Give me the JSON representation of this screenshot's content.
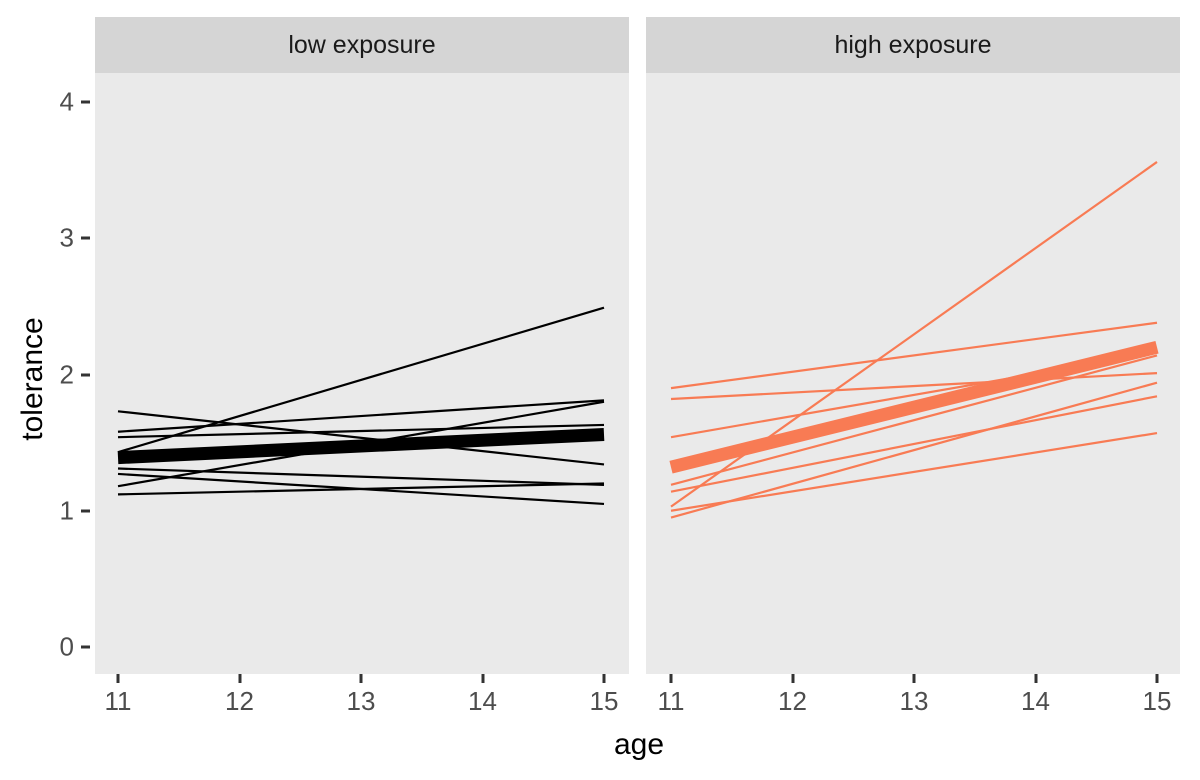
{
  "chart_data": {
    "type": "line",
    "title": "",
    "xlabel": "age",
    "ylabel": "tolerance",
    "x_endpoints": [
      11,
      15
    ],
    "x_ticks": [
      "11",
      "12",
      "13",
      "14",
      "15"
    ],
    "y_ticks": [
      "0",
      "1",
      "2",
      "3",
      "4"
    ],
    "xlim": [
      10.8,
      15.2
    ],
    "ylim": [
      -0.2,
      4.2
    ],
    "grid": false,
    "legend": "none",
    "description": "Individual fitted tolerance trajectories (thin lines) and group-average trajectory (thick line), faceted by exposure group; values are tolerance at age 11 and age 15.",
    "facets": [
      {
        "label": "low exposure",
        "line_color": "#000000",
        "individual_lines": [
          [
            1.54,
            1.63
          ],
          [
            1.31,
            1.19
          ],
          [
            1.58,
            1.81
          ],
          [
            1.43,
            2.49
          ],
          [
            1.12,
            1.2
          ],
          [
            1.27,
            1.05
          ],
          [
            1.73,
            1.34
          ],
          [
            1.18,
            1.8
          ]
        ],
        "mean_line": [
          1.39,
          1.56
        ]
      },
      {
        "label": "high exposure",
        "line_color": "#f87b54",
        "individual_lines": [
          [
            1.9,
            2.38
          ],
          [
            1.14,
            1.84
          ],
          [
            1.82,
            2.01
          ],
          [
            1.0,
            1.57
          ],
          [
            1.03,
            3.56
          ],
          [
            1.54,
            2.16
          ],
          [
            1.19,
            2.14
          ],
          [
            0.95,
            1.94
          ]
        ],
        "mean_line": [
          1.32,
          2.2
        ]
      }
    ],
    "colors": {
      "panel_background": "#eaeaea",
      "strip_background": "#d5d5d5",
      "axis_text": "#4d4d4d",
      "low_exposure_line": "#000000",
      "high_exposure_line": "#f87b54"
    }
  }
}
